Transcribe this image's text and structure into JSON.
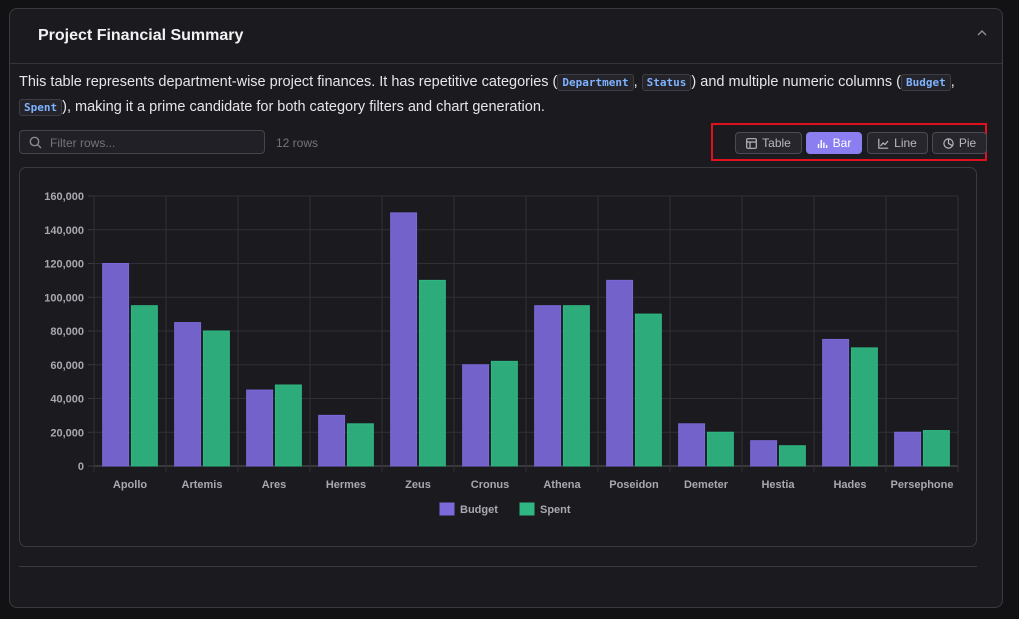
{
  "header": {
    "title": "Project Financial Summary",
    "collapse_icon": "chevron-up-icon"
  },
  "description": {
    "part1": "This table represents department-wise project finances. It has repetitive categories (",
    "code1": "Department",
    "sep1": ", ",
    "code2": "Status",
    "part2": ") and multiple numeric columns (",
    "code3": "Budget",
    "sep2": ", ",
    "code4": "Spent",
    "part3": "), making it a prime candidate for both category filters and chart generation."
  },
  "toolbar": {
    "filter_placeholder": "Filter rows...",
    "filter_value": "",
    "row_count": "12 rows",
    "views": [
      {
        "label": "Table",
        "icon": "table-icon",
        "active": false
      },
      {
        "label": "Bar",
        "icon": "bar-chart-icon",
        "active": true
      },
      {
        "label": "Line",
        "icon": "line-chart-icon",
        "active": false
      },
      {
        "label": "Pie",
        "icon": "pie-chart-icon",
        "active": false
      }
    ]
  },
  "colors": {
    "budget": "#7b68d9",
    "spent": "#2fb783",
    "accent": "#8b7ef0",
    "highlight": "#e0101e"
  },
  "chart_data": {
    "type": "bar",
    "categories": [
      "Apollo",
      "Artemis",
      "Ares",
      "Hermes",
      "Zeus",
      "Cronus",
      "Athena",
      "Poseidon",
      "Demeter",
      "Hestia",
      "Hades",
      "Persephone"
    ],
    "series": [
      {
        "name": "Budget",
        "values": [
          120000,
          85000,
          45000,
          30000,
          150000,
          60000,
          95000,
          110000,
          25000,
          15000,
          75000,
          20000
        ]
      },
      {
        "name": "Spent",
        "values": [
          95000,
          80000,
          48000,
          25000,
          110000,
          62000,
          95000,
          90000,
          20000,
          12000,
          70000,
          21000
        ]
      }
    ],
    "yticks": [
      "0",
      "20,000",
      "40,000",
      "60,000",
      "80,000",
      "100,000",
      "120,000",
      "140,000",
      "160,000"
    ],
    "ylim": [
      0,
      160000
    ],
    "grid": true,
    "legend": "bottom"
  }
}
